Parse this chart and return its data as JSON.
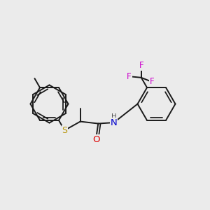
{
  "background_color": "#ebebeb",
  "bond_color": "#1a1a1a",
  "bond_width": 1.4,
  "atom_colors": {
    "S": "#b8960a",
    "O": "#dd0000",
    "N": "#0000cc",
    "F": "#cc00cc",
    "H": "#555555",
    "C": "#1a1a1a"
  }
}
